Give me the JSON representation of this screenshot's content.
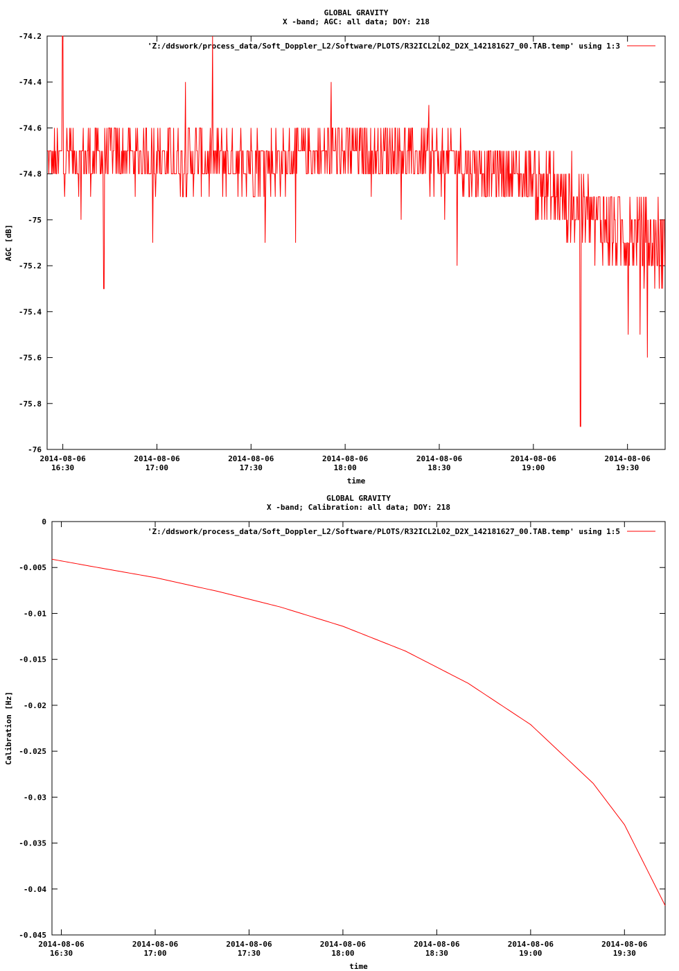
{
  "chart_data": [
    {
      "type": "line",
      "title": "GLOBAL GRAVITY",
      "subtitle": "X -band; AGC: all data; DOY: 218",
      "xlabel": "time",
      "ylabel": "AGC [dB]",
      "ylim": [
        -76,
        -74.2
      ],
      "yticks": [
        -74.2,
        -74.4,
        -74.6,
        -74.8,
        -75,
        -75.2,
        -75.4,
        -75.6,
        -75.8,
        -76
      ],
      "ytick_labels": [
        "-74.2",
        "-74.4",
        "-74.6",
        "-74.8",
        "-75",
        "-75.2",
        "-75.4",
        "-75.6",
        "-75.8",
        "-76"
      ],
      "xlim_minutes": [
        985,
        1182
      ],
      "xticks_minutes": [
        990,
        1020,
        1050,
        1080,
        1110,
        1140,
        1170
      ],
      "xtick_labels": [
        [
          "2014-08-06",
          "16:30"
        ],
        [
          "2014-08-06",
          "17:00"
        ],
        [
          "2014-08-06",
          "17:30"
        ],
        [
          "2014-08-06",
          "18:00"
        ],
        [
          "2014-08-06",
          "18:30"
        ],
        [
          "2014-08-06",
          "19:00"
        ],
        [
          "2014-08-06",
          "19:30"
        ]
      ],
      "legend_position": "top-right",
      "series": [
        {
          "name": "'Z:/ddswork/process_data/Soft_Doppler_L2/Software/PLOTS/R32ICL2L02_D2X_142181627_00.TAB.temp' using 1:3",
          "color": "#ff0000",
          "x_minutes": [
            985,
            1000,
            1020,
            1040,
            1060,
            1080,
            1100,
            1120,
            1140,
            1150,
            1160,
            1170,
            1182
          ],
          "mean": [
            -74.75,
            -74.72,
            -74.73,
            -74.74,
            -74.74,
            -74.7,
            -74.72,
            -74.76,
            -74.82,
            -74.92,
            -75.0,
            -75.06,
            -75.12
          ],
          "spike_min_x": 1003,
          "spike_min_y": -75.3,
          "spike_max_x": 990,
          "spike_max_y": -74.2,
          "deep_min_x": 1155,
          "deep_min_y": -75.9
        }
      ]
    },
    {
      "type": "line",
      "title": "GLOBAL GRAVITY",
      "subtitle": "X -band; Calibration: all data; DOY: 218",
      "xlabel": "time",
      "ylabel": "Calibration [Hz]",
      "ylim": [
        -0.045,
        0
      ],
      "yticks": [
        0,
        -0.005,
        -0.01,
        -0.015,
        -0.02,
        -0.025,
        -0.03,
        -0.035,
        -0.04,
        -0.045
      ],
      "ytick_labels": [
        "0",
        "-0.005",
        "-0.01",
        "-0.015",
        "-0.02",
        "-0.025",
        "-0.03",
        "-0.035",
        "-0.04",
        "-0.045"
      ],
      "xlim_minutes": [
        987,
        1183
      ],
      "xticks_minutes": [
        990,
        1020,
        1050,
        1080,
        1110,
        1140,
        1170
      ],
      "xtick_labels": [
        [
          "2014-08-06",
          "16:30"
        ],
        [
          "2014-08-06",
          "17:00"
        ],
        [
          "2014-08-06",
          "17:30"
        ],
        [
          "2014-08-06",
          "18:00"
        ],
        [
          "2014-08-06",
          "18:30"
        ],
        [
          "2014-08-06",
          "19:00"
        ],
        [
          "2014-08-06",
          "19:30"
        ]
      ],
      "legend_position": "top-right",
      "series": [
        {
          "name": "'Z:/ddswork/process_data/Soft_Doppler_L2/Software/PLOTS/R32ICL2L02_D2X_142181627_00.TAB.temp' using 1:5",
          "color": "#ff0000",
          "x_minutes": [
            987,
            1000,
            1020,
            1040,
            1060,
            1080,
            1100,
            1120,
            1140,
            1160,
            1170,
            1183
          ],
          "values": [
            -0.0041,
            -0.0049,
            -0.0061,
            -0.0076,
            -0.0093,
            -0.0114,
            -0.0141,
            -0.0176,
            -0.0221,
            -0.0285,
            -0.033,
            -0.0418
          ]
        }
      ]
    }
  ]
}
